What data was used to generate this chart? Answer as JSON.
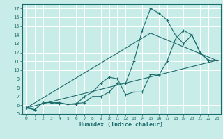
{
  "xlabel": "Humidex (Indice chaleur)",
  "xlim": [
    -0.5,
    23.5
  ],
  "ylim": [
    5,
    17.5
  ],
  "xticks": [
    0,
    1,
    2,
    3,
    4,
    5,
    6,
    7,
    8,
    9,
    10,
    11,
    12,
    13,
    14,
    15,
    16,
    17,
    18,
    19,
    20,
    21,
    22,
    23
  ],
  "yticks": [
    5,
    6,
    7,
    8,
    9,
    10,
    11,
    12,
    13,
    14,
    15,
    16,
    17
  ],
  "bg_color": "#c8ece8",
  "grid_color": "#a0d4ce",
  "line_color": "#1a6b6b",
  "line1_x": [
    0,
    1,
    2,
    3,
    4,
    5,
    6,
    7,
    8,
    9,
    10,
    11,
    12,
    13,
    14,
    15,
    16,
    17,
    18,
    19,
    20,
    21,
    22,
    23
  ],
  "line1_y": [
    5.7,
    5.5,
    6.3,
    6.3,
    6.2,
    6.1,
    6.2,
    6.3,
    7.0,
    7.0,
    7.5,
    8.5,
    8.5,
    11.0,
    14.5,
    17.0,
    16.5,
    15.7,
    14.0,
    13.0,
    14.0,
    12.0,
    11.1,
    11.1
  ],
  "line2_x": [
    0,
    1,
    2,
    3,
    4,
    5,
    6,
    7,
    8,
    9,
    10,
    11,
    12,
    13,
    14,
    15,
    16,
    17,
    18,
    19,
    20,
    21,
    22,
    23
  ],
  "line2_y": [
    5.7,
    5.5,
    6.3,
    6.3,
    6.3,
    6.1,
    6.1,
    7.0,
    7.5,
    8.5,
    9.2,
    9.0,
    7.2,
    7.5,
    7.5,
    9.5,
    9.4,
    11.0,
    13.5,
    14.5,
    14.0,
    12.0,
    11.1,
    11.1
  ],
  "line3_x": [
    0,
    23
  ],
  "line3_y": [
    5.7,
    11.1
  ],
  "line4_x": [
    0,
    15,
    23
  ],
  "line4_y": [
    5.7,
    14.2,
    11.1
  ]
}
